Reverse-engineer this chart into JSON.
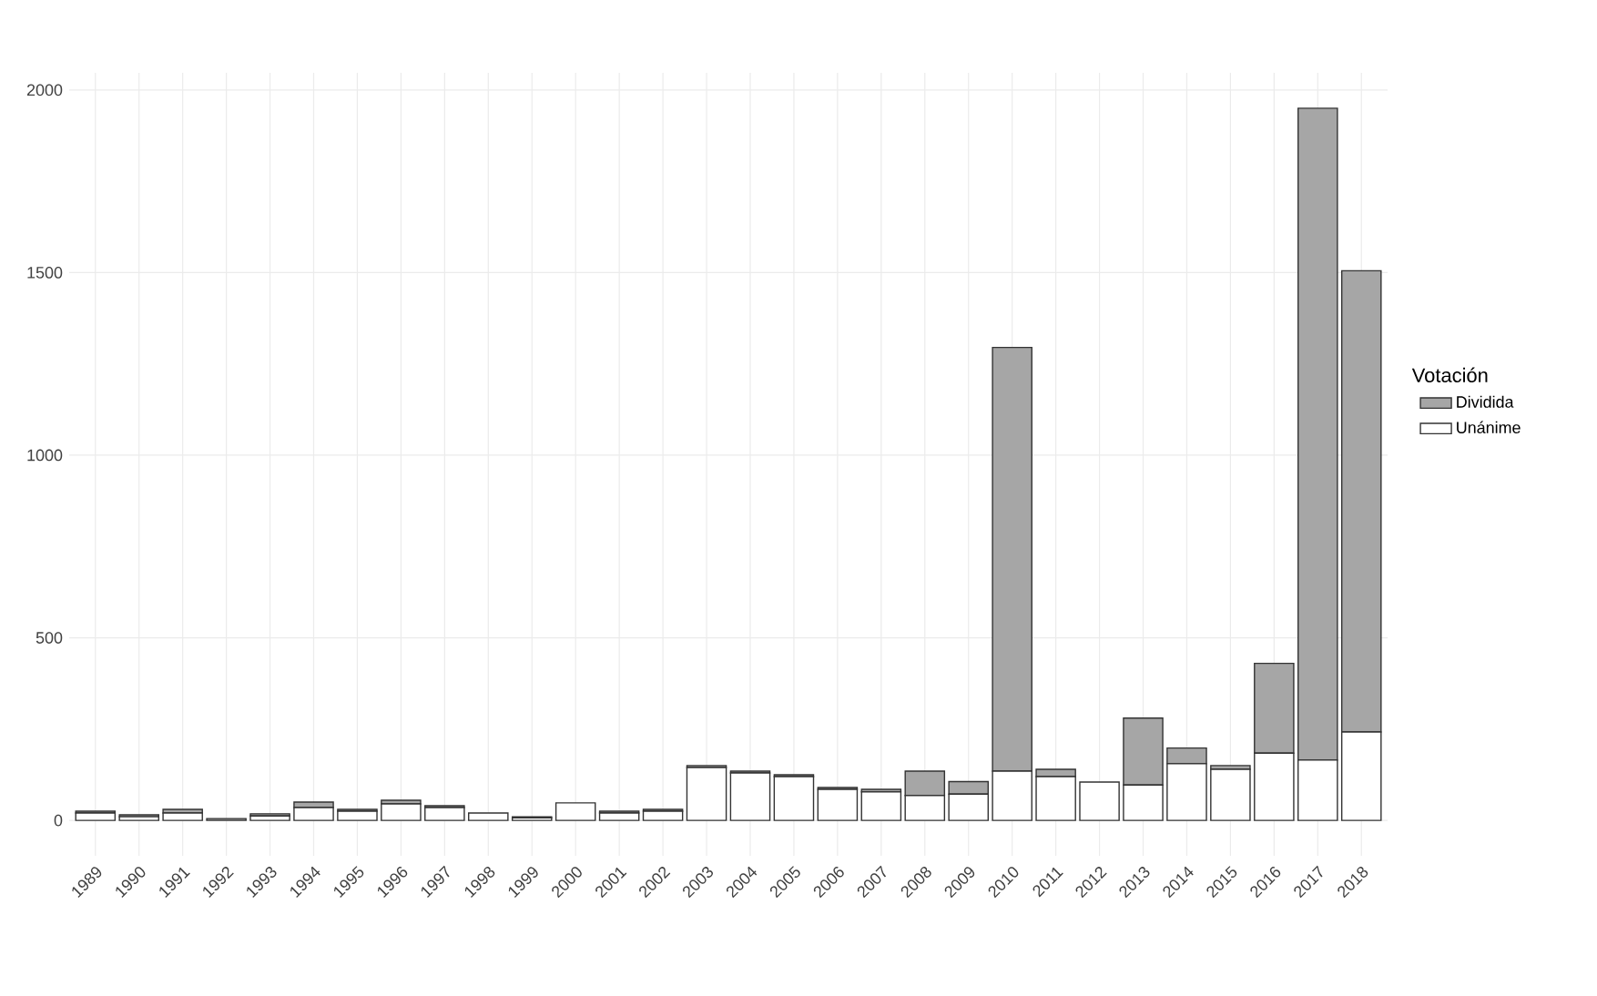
{
  "chart_data": {
    "type": "bar",
    "stacked": true,
    "legend_title": "Votación",
    "legend": "right",
    "grid": true,
    "categories": [
      "1989",
      "1990",
      "1991",
      "1992",
      "1993",
      "1994",
      "1995",
      "1996",
      "1997",
      "1998",
      "1999",
      "2000",
      "2001",
      "2002",
      "2003",
      "2004",
      "2005",
      "2006",
      "2007",
      "2008",
      "2009",
      "2010",
      "2011",
      "2012",
      "2013",
      "2014",
      "2015",
      "2016",
      "2017",
      "2018"
    ],
    "ylim": [
      -97,
      2047
    ],
    "yticks": [
      0,
      500,
      1000,
      1500,
      2000
    ],
    "series": [
      {
        "name": "Unánime",
        "color": "#ffffff",
        "values": [
          20,
          10,
          20,
          null,
          12,
          35,
          25,
          45,
          35,
          20,
          7,
          48,
          20,
          25,
          145,
          130,
          120,
          85,
          78,
          68,
          72,
          135,
          120,
          105,
          97,
          155,
          140,
          184,
          165,
          242
        ]
      },
      {
        "name": "Dividida",
        "color": "#a6a6a6",
        "values": [
          5,
          5,
          10,
          5,
          6,
          15,
          5,
          10,
          5,
          0,
          3,
          0,
          5,
          5,
          5,
          5,
          5,
          5,
          7,
          67,
          34,
          1160,
          20,
          0,
          183,
          43,
          10,
          246,
          1785,
          1263
        ]
      }
    ]
  }
}
